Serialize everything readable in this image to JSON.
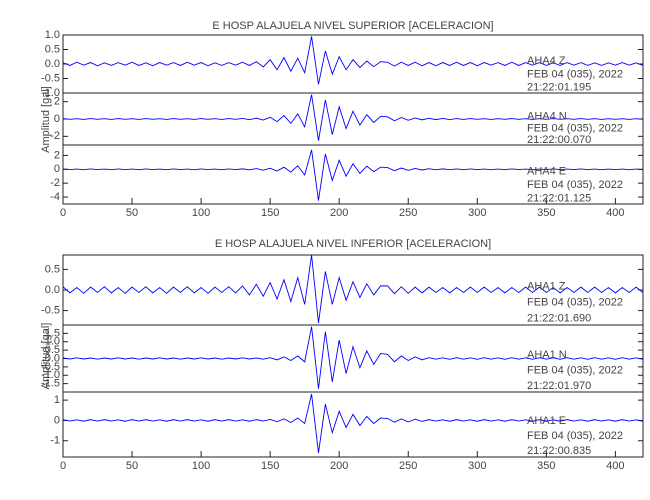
{
  "chart_data": [
    {
      "type": "line",
      "title": "E HOSP ALAJUELA NIVEL SUPERIOR [ACELERACION]",
      "ylabel": "Amplitud [gal]",
      "color": "#0000ff",
      "xlim": [
        0,
        420
      ],
      "xticks": [
        0,
        50,
        100,
        150,
        200,
        250,
        300,
        350,
        400
      ],
      "x": [
        0,
        5,
        10,
        15,
        20,
        25,
        30,
        35,
        40,
        45,
        50,
        55,
        60,
        65,
        70,
        75,
        80,
        85,
        90,
        95,
        100,
        105,
        110,
        115,
        120,
        125,
        130,
        135,
        140,
        145,
        150,
        155,
        160,
        165,
        170,
        175,
        180,
        185,
        190,
        195,
        200,
        205,
        210,
        215,
        220,
        225,
        230,
        235,
        240,
        245,
        250,
        255,
        260,
        265,
        270,
        275,
        280,
        285,
        290,
        295,
        300,
        305,
        310,
        315,
        320,
        325,
        330,
        335,
        340,
        345,
        350,
        355,
        360,
        365,
        370,
        375,
        380,
        385,
        390,
        395,
        400,
        405,
        410,
        415,
        420
      ],
      "panels": [
        {
          "ylim": [
            -1,
            1
          ],
          "yticks": [
            {
              "value": 1,
              "label": "1.0"
            },
            0.5,
            {
              "value": 0,
              "label": "0.0"
            },
            -0.5,
            {
              "value": -1,
              "label": "-1.0"
            }
          ],
          "labels": [
            "AHA4 Z",
            "FEB 04 (035), 2022",
            "21:22:01.195"
          ],
          "values": [
            0.04,
            -0.05,
            0.06,
            -0.04,
            0.05,
            -0.06,
            0.04,
            -0.05,
            0.05,
            -0.04,
            0.06,
            -0.05,
            0.04,
            -0.06,
            0.05,
            -0.04,
            0.05,
            -0.05,
            0.06,
            -0.04,
            0.05,
            -0.06,
            0.04,
            -0.05,
            0.05,
            -0.04,
            0.06,
            -0.05,
            0.08,
            -0.1,
            0.15,
            -0.2,
            0.22,
            -0.25,
            0.2,
            -0.3,
            0.95,
            -0.7,
            0.45,
            -0.35,
            0.25,
            -0.2,
            0.15,
            -0.12,
            0.1,
            -0.09,
            0.08,
            0.06,
            -0.07,
            0.06,
            -0.05,
            0.06,
            -0.06,
            0.05,
            -0.06,
            0.05,
            -0.05,
            0.06,
            -0.05,
            0.05,
            -0.06,
            0.05,
            -0.04,
            0.05,
            -0.05,
            0.06,
            -0.05,
            0.05,
            -0.04,
            0.05,
            -0.05,
            0.04,
            -0.05,
            0.05,
            -0.04,
            0.05,
            -0.05,
            0.04,
            -0.05,
            0.04,
            -0.04,
            0.05,
            -0.04,
            0.04,
            -0.05
          ]
        },
        {
          "ylim": [
            -3,
            3
          ],
          "yticks": [
            2,
            0,
            -2
          ],
          "labels": [
            "AHA4 N",
            "FEB 04 (035), 2022",
            "21:22:00.070"
          ],
          "values": [
            0.05,
            -0.04,
            0.04,
            -0.05,
            0.05,
            -0.04,
            0.04,
            -0.05,
            0.05,
            -0.04,
            0.04,
            -0.05,
            0.05,
            -0.04,
            0.04,
            -0.05,
            0.05,
            -0.04,
            0.04,
            -0.05,
            0.05,
            -0.04,
            0.04,
            -0.05,
            0.05,
            -0.04,
            0.06,
            -0.08,
            0.1,
            -0.12,
            0.2,
            -0.3,
            0.4,
            -0.5,
            0.6,
            -0.9,
            2.8,
            -2.5,
            2.2,
            -1.8,
            1.4,
            -1.1,
            0.9,
            -0.7,
            0.5,
            -0.4,
            0.3,
            0.25,
            -0.2,
            0.18,
            -0.15,
            0.12,
            -0.1,
            0.08,
            -0.07,
            0.06,
            -0.06,
            0.05,
            -0.05,
            0.05,
            -0.04,
            0.04,
            -0.05,
            0.04,
            -0.04,
            0.05,
            -0.04,
            0.04,
            -0.05,
            0.04,
            -0.04,
            0.05,
            -0.04,
            0.04,
            -0.04,
            0.05,
            -0.04,
            0.04,
            -0.05,
            0.04,
            -0.04,
            0.04,
            -0.05,
            0.04,
            -0.04
          ]
        },
        {
          "ylim": [
            -5,
            3.5
          ],
          "yticks": [
            2,
            0,
            -2,
            -4
          ],
          "labels": [
            "AHA4 E",
            "FEB 04 (035), 2022",
            "21:22:01.125"
          ],
          "values": [
            0.05,
            -0.04,
            0.04,
            -0.05,
            0.05,
            -0.04,
            0.04,
            -0.05,
            0.05,
            -0.04,
            0.04,
            -0.05,
            0.05,
            -0.04,
            0.04,
            -0.05,
            0.05,
            -0.04,
            0.04,
            -0.05,
            0.05,
            -0.04,
            0.04,
            -0.05,
            0.05,
            -0.04,
            0.06,
            -0.08,
            0.1,
            -0.12,
            0.15,
            -0.25,
            0.3,
            -0.4,
            0.5,
            -0.8,
            2.8,
            -4.5,
            2.2,
            -1.6,
            1.3,
            -1.0,
            0.8,
            -0.6,
            0.45,
            -0.35,
            0.3,
            0.25,
            -0.2,
            0.18,
            -0.15,
            0.12,
            -0.1,
            0.08,
            -0.07,
            0.06,
            -0.06,
            0.05,
            -0.05,
            0.05,
            -0.04,
            0.04,
            -0.05,
            0.04,
            -0.04,
            0.05,
            -0.04,
            0.04,
            -0.05,
            0.04,
            -0.04,
            0.05,
            -0.04,
            0.04,
            -0.04,
            0.05,
            -0.04,
            0.04,
            -0.05,
            0.04,
            -0.04,
            0.04,
            -0.05,
            0.04,
            -0.04
          ]
        }
      ]
    },
    {
      "type": "line",
      "title": "E HOSP ALAJUELA NIVEL INFERIOR [ACELERACION]",
      "ylabel": "Amplitud [gal]",
      "color": "#0000ff",
      "xlim": [
        0,
        420
      ],
      "xticks": [
        0,
        50,
        100,
        150,
        200,
        250,
        300,
        350,
        400
      ],
      "x": [
        0,
        5,
        10,
        15,
        20,
        25,
        30,
        35,
        40,
        45,
        50,
        55,
        60,
        65,
        70,
        75,
        80,
        85,
        90,
        95,
        100,
        105,
        110,
        115,
        120,
        125,
        130,
        135,
        140,
        145,
        150,
        155,
        160,
        165,
        170,
        175,
        180,
        185,
        190,
        195,
        200,
        205,
        210,
        215,
        220,
        225,
        230,
        235,
        240,
        245,
        250,
        255,
        260,
        265,
        270,
        275,
        280,
        285,
        290,
        295,
        300,
        305,
        310,
        315,
        320,
        325,
        330,
        335,
        340,
        345,
        350,
        355,
        360,
        365,
        370,
        375,
        380,
        385,
        390,
        395,
        400,
        405,
        410,
        415,
        420
      ],
      "panels": [
        {
          "ylim": [
            -0.85,
            0.85
          ],
          "yticks": [
            0.5,
            {
              "value": 0,
              "label": "0.0"
            },
            -0.5
          ],
          "labels": [
            "AHA1 Z",
            "FEB 04 (035), 2022",
            "21:22:01.690"
          ],
          "values": [
            0.08,
            -0.07,
            0.06,
            -0.08,
            0.07,
            -0.06,
            0.08,
            -0.07,
            0.06,
            -0.08,
            0.07,
            -0.06,
            0.08,
            -0.07,
            0.06,
            -0.08,
            0.07,
            -0.06,
            0.08,
            -0.07,
            0.06,
            -0.08,
            0.07,
            -0.06,
            0.08,
            -0.07,
            0.1,
            -0.12,
            0.14,
            -0.15,
            0.18,
            -0.22,
            0.25,
            -0.28,
            0.3,
            -0.35,
            0.85,
            -0.8,
            0.45,
            -0.35,
            0.3,
            -0.25,
            0.2,
            -0.18,
            0.15,
            -0.12,
            0.1,
            0.1,
            -0.09,
            0.08,
            -0.08,
            0.07,
            -0.07,
            0.07,
            -0.06,
            0.06,
            -0.07,
            0.06,
            -0.06,
            0.07,
            -0.06,
            0.07,
            -0.06,
            0.06,
            -0.07,
            0.06,
            -0.06,
            0.07,
            -0.06,
            0.07,
            -0.06,
            0.06,
            -0.07,
            0.06,
            -0.06,
            0.07,
            -0.06,
            0.07,
            -0.06,
            0.06,
            -0.07,
            0.06,
            -0.06,
            0.07,
            -0.06
          ]
        },
        {
          "ylim": [
            -2,
            2
          ],
          "yticks": [
            1.5,
            {
              "value": 1,
              "label": "1.0"
            },
            0.5,
            {
              "value": 0,
              "label": "0.0"
            },
            -0.5,
            {
              "value": -1,
              "label": "-1.0"
            },
            -1.5
          ],
          "labels": [
            "AHA1 N",
            "FEB 04 (035), 2022",
            "21:22:01.970"
          ],
          "values": [
            0.03,
            -0.03,
            0.04,
            -0.03,
            0.03,
            -0.04,
            0.03,
            -0.03,
            0.04,
            -0.03,
            0.03,
            -0.04,
            0.03,
            -0.03,
            0.04,
            -0.03,
            0.03,
            -0.04,
            0.03,
            -0.03,
            0.04,
            -0.03,
            0.03,
            -0.04,
            0.03,
            -0.03,
            0.04,
            -0.03,
            0.03,
            -0.04,
            0.05,
            -0.08,
            0.1,
            -0.12,
            0.15,
            -0.2,
            1.9,
            -1.8,
            1.6,
            -1.4,
            1.1,
            -0.9,
            0.7,
            -0.55,
            0.45,
            -0.35,
            0.3,
            0.25,
            -0.2,
            0.15,
            -0.12,
            0.1,
            -0.08,
            0.05,
            -0.04,
            0.04,
            -0.05,
            0.05,
            -0.04,
            0.04,
            -0.05,
            0.05,
            -0.04,
            0.04,
            -0.05,
            0.05,
            -0.04,
            0.04,
            -0.05,
            0.05,
            -0.04,
            0.04,
            -0.05,
            0.05,
            -0.04,
            0.04,
            -0.05,
            0.05,
            -0.04,
            0.04,
            -0.05,
            0.05,
            -0.04,
            0.04,
            -0.05
          ]
        },
        {
          "ylim": [
            -1.8,
            1.4
          ],
          "yticks": [
            1,
            0,
            -1
          ],
          "labels": [
            "AHA1 E",
            "FEB 04 (035), 2022",
            "21:22:00.835"
          ],
          "values": [
            0.04,
            -0.03,
            0.03,
            -0.04,
            0.04,
            -0.03,
            0.04,
            -0.03,
            0.03,
            -0.04,
            0.04,
            -0.03,
            0.04,
            -0.03,
            0.03,
            -0.04,
            0.04,
            -0.03,
            0.04,
            -0.03,
            0.03,
            -0.04,
            0.04,
            -0.03,
            0.04,
            -0.03,
            0.03,
            -0.04,
            0.04,
            -0.03,
            0.05,
            -0.06,
            0.08,
            -0.1,
            0.12,
            -0.15,
            1.3,
            -1.6,
            0.8,
            -0.6,
            0.45,
            -0.35,
            0.3,
            -0.25,
            0.2,
            -0.15,
            0.12,
            0.1,
            -0.09,
            0.08,
            -0.07,
            0.06,
            -0.05,
            0.04,
            -0.03,
            0.03,
            -0.04,
            0.04,
            -0.03,
            0.03,
            -0.04,
            0.04,
            -0.03,
            0.03,
            -0.04,
            0.04,
            -0.03,
            0.03,
            -0.04,
            0.04,
            -0.03,
            0.03,
            -0.04,
            0.04,
            -0.03,
            0.03,
            -0.04,
            0.04,
            -0.03,
            0.03,
            -0.04,
            0.04,
            -0.03,
            0.03,
            -0.04
          ]
        }
      ]
    }
  ]
}
